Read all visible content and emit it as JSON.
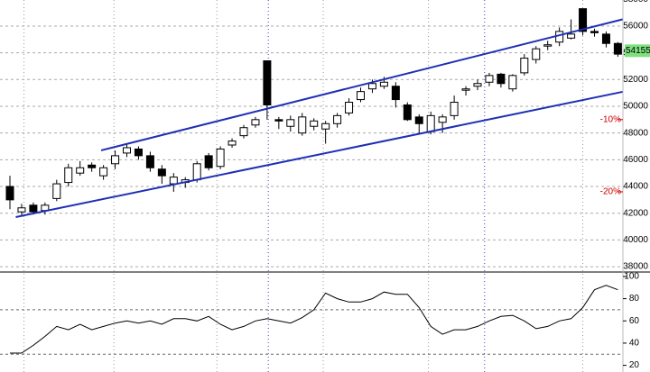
{
  "chart_data": [
    {
      "type": "candlestick",
      "categories": [
        null,
        null,
        null,
        null,
        null,
        null,
        null,
        null,
        null,
        null,
        null,
        null,
        null,
        null,
        null,
        null,
        null,
        null,
        null,
        null,
        null,
        null,
        null,
        null,
        null,
        null,
        null,
        null,
        null,
        null,
        null,
        null,
        null,
        null,
        null,
        null,
        null,
        null,
        null,
        null,
        null,
        null,
        null,
        null,
        null,
        null,
        null,
        null,
        null,
        null,
        null,
        null,
        null
      ],
      "open": [
        44000,
        42100,
        42600,
        42200,
        43100,
        44300,
        45000,
        45600,
        44800,
        45700,
        46500,
        46800,
        46300,
        45300,
        44200,
        44300,
        44500,
        46300,
        45500,
        47100,
        47800,
        48600,
        53400,
        49000,
        48500,
        48000,
        48500,
        48300,
        48700,
        49500,
        50500,
        51300,
        51500,
        51500,
        50100,
        49200,
        48100,
        48800,
        49300,
        51200,
        51500,
        51800,
        52400,
        51300,
        52500,
        53500,
        54500,
        54800,
        55100,
        57300,
        55600,
        55400,
        54700
      ],
      "high": [
        44800,
        42700,
        42800,
        42800,
        44500,
        45700,
        45900,
        45800,
        45600,
        46700,
        47200,
        47000,
        46600,
        45600,
        45000,
        44700,
        45900,
        46500,
        47000,
        47600,
        48600,
        49200,
        53400,
        49200,
        49300,
        49500,
        49100,
        48900,
        49500,
        50600,
        51400,
        52000,
        52200,
        51800,
        50300,
        49400,
        49600,
        49400,
        50800,
        51500,
        52000,
        52500,
        52500,
        52400,
        53900,
        54500,
        54900,
        55900,
        56500,
        57300,
        55800,
        55600,
        54800
      ],
      "low": [
        42300,
        41800,
        41900,
        41900,
        42900,
        44000,
        44800,
        45100,
        44500,
        45300,
        46200,
        46000,
        45100,
        44200,
        43600,
        43900,
        44300,
        45200,
        45300,
        46900,
        47600,
        48400,
        49000,
        48300,
        48100,
        47800,
        48200,
        47200,
        48400,
        49300,
        50300,
        51000,
        51300,
        49900,
        48900,
        48000,
        47900,
        48000,
        49000,
        50800,
        51200,
        51500,
        51400,
        51100,
        52300,
        53200,
        54200,
        54500,
        55000,
        55300,
        55200,
        54400,
        53700
      ],
      "close": [
        43000,
        42400,
        42100,
        42600,
        44200,
        45400,
        45400,
        45400,
        45400,
        46300,
        46900,
        46300,
        45400,
        44800,
        44700,
        44500,
        45700,
        45400,
        46800,
        47400,
        48400,
        49000,
        50100,
        48900,
        49000,
        49200,
        48900,
        48700,
        49300,
        50300,
        51100,
        51700,
        51800,
        50500,
        49000,
        48700,
        49300,
        49200,
        50300,
        51300,
        51700,
        52300,
        51700,
        52300,
        53600,
        54300,
        54600,
        55600,
        55400,
        55600,
        55500,
        54700,
        53900
      ],
      "up_color": "#ffffff",
      "down_color": "#000000",
      "ylim": [
        37600,
        57950
      ],
      "yticks": [
        38000,
        40000,
        42000,
        44000,
        46000,
        48000,
        50000,
        52000,
        54000,
        56000,
        58000
      ],
      "grid": true,
      "trendlines": [
        {
          "color": "#1f2fb5",
          "x": [
            7.8,
            52.4
          ],
          "values": [
            46700,
            56500
          ]
        },
        {
          "color": "#1f2fb5",
          "x": [
            0.5,
            52.4
          ],
          "values": [
            41710,
            51080
          ]
        }
      ],
      "annotations": [
        {
          "value": 49000,
          "label": "-10%"
        },
        {
          "value": 43600,
          "label": "-20%"
        }
      ],
      "last_price": 54155
    },
    {
      "type": "line",
      "values": [
        31,
        31,
        38,
        46,
        55,
        52,
        57,
        52,
        55,
        58,
        60,
        58,
        60,
        57,
        62,
        62,
        60,
        64,
        57,
        52,
        55,
        60,
        62,
        60,
        58,
        63,
        70,
        85,
        80,
        77,
        77,
        80,
        86,
        84,
        84,
        72,
        55,
        48,
        52,
        52,
        55,
        60,
        64,
        65,
        60,
        53,
        55,
        60,
        62,
        72,
        88,
        92,
        88
      ],
      "color": "#000000",
      "ylim": [
        14,
        104
      ],
      "yticks": [
        20,
        40,
        60,
        80,
        100
      ],
      "hlines": [
        30,
        70
      ]
    }
  ]
}
